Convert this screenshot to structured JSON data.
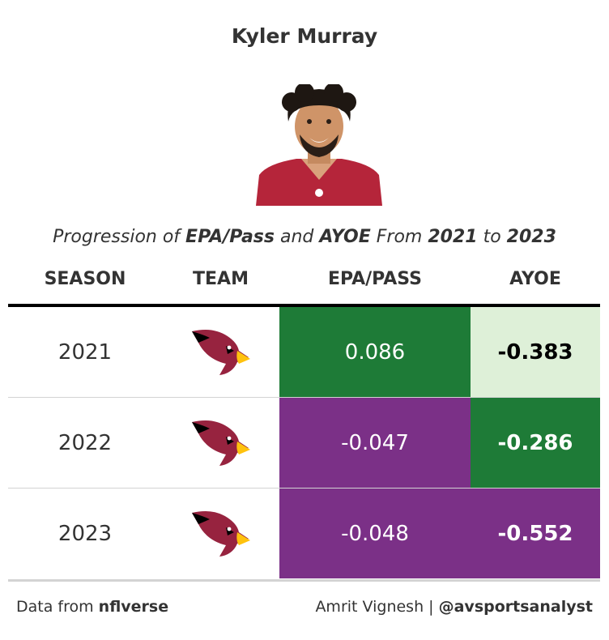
{
  "title": "Kyler Murray",
  "subtitle": {
    "p1": "Progression of ",
    "b1": "EPA/Pass",
    "p2": " and ",
    "b2": "AYOE",
    "p3": " From ",
    "b3": "2021",
    "p4": " to ",
    "b4": "2023"
  },
  "columns": [
    "SEASON",
    "TEAM",
    "EPA/PASS",
    "AYOE"
  ],
  "rows": [
    {
      "season": "2021",
      "team_logo": "arizona-cardinals-logo-icon",
      "epa": "0.086",
      "ayoe": "-0.383",
      "epa_bg": "#1e7b37",
      "ayoe_bg": "#def0d8",
      "ayoe_color": "#000000"
    },
    {
      "season": "2022",
      "team_logo": "arizona-cardinals-logo-icon",
      "epa": "-0.047",
      "ayoe": "-0.286",
      "epa_bg": "#7b3087",
      "ayoe_bg": "#1e7b37",
      "ayoe_color": "#ffffff"
    },
    {
      "season": "2023",
      "team_logo": "arizona-cardinals-logo-icon",
      "epa": "-0.048",
      "ayoe": "-0.552",
      "epa_bg": "#7b3087",
      "ayoe_bg": "#7b3087",
      "ayoe_color": "#ffffff"
    }
  ],
  "footer": {
    "left_prefix": "Data from ",
    "left_bold": "nflverse",
    "right_prefix": "Amrit Vignesh | ",
    "right_bold": "@avsportsanalyst"
  },
  "colors": {
    "green": "#1e7b37",
    "purple": "#7b3087",
    "light_green": "#def0d8",
    "cardinal_red": "#97233f"
  }
}
